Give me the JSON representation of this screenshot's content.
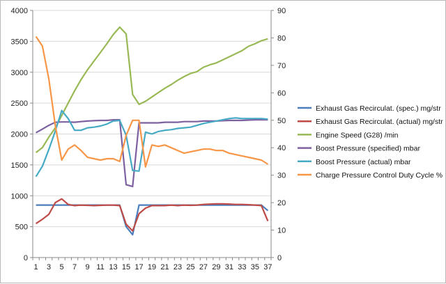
{
  "chart_data": {
    "type": "line",
    "title": "",
    "xlabel": "",
    "ylabel": "",
    "y2label": "",
    "grid": true,
    "legend_position": "right",
    "x_categories": [
      "1",
      "2",
      "3",
      "4",
      "5",
      "6",
      "7",
      "8",
      "9",
      "10",
      "11",
      "12",
      "13",
      "14",
      "15",
      "16",
      "17",
      "18",
      "19",
      "20",
      "21",
      "22",
      "23",
      "24",
      "25",
      "26",
      "27",
      "28",
      "29",
      "30",
      "31",
      "32",
      "33",
      "34",
      "35",
      "36",
      "37"
    ],
    "x_tick_labels": [
      "1",
      "3",
      "5",
      "7",
      "9",
      "11",
      "13",
      "15",
      "17",
      "19",
      "21",
      "23",
      "25",
      "27",
      "29",
      "31",
      "33",
      "35",
      "37"
    ],
    "left_axis": {
      "range": [
        0,
        4000
      ],
      "ticks": [
        0,
        500,
        1000,
        1500,
        2000,
        2500,
        3000,
        3500,
        4000
      ],
      "tick_labels": [
        "0",
        "500",
        "1000",
        "1500",
        "2000",
        "2500",
        "3000",
        "3500",
        "4000"
      ]
    },
    "right_axis": {
      "range": [
        0,
        90
      ],
      "ticks": [
        0,
        10,
        20,
        30,
        40,
        50,
        60,
        70,
        80,
        90
      ],
      "tick_labels": [
        "0",
        "10",
        "20",
        "30",
        "40",
        "50",
        "60",
        "70",
        "80",
        "90"
      ]
    },
    "series": [
      {
        "name": "Exhaust Gas Recirculat. (spec.)  mg/str",
        "axis": "left",
        "color": "#4a7ebb",
        "values": [
          850,
          850,
          850,
          850,
          850,
          850,
          850,
          850,
          850,
          850,
          850,
          850,
          850,
          850,
          500,
          370,
          850,
          850,
          850,
          850,
          850,
          850,
          850,
          850,
          850,
          850,
          850,
          850,
          850,
          850,
          850,
          850,
          850,
          850,
          850,
          850,
          760
        ]
      },
      {
        "name": "Exhaust Gas Recirculat. (actual)  mg/str",
        "axis": "left",
        "color": "#be4b48",
        "values": [
          550,
          620,
          700,
          890,
          950,
          860,
          840,
          850,
          845,
          840,
          845,
          850,
          850,
          840,
          540,
          430,
          710,
          800,
          840,
          840,
          840,
          850,
          840,
          850,
          845,
          850,
          860,
          865,
          870,
          870,
          865,
          860,
          860,
          855,
          850,
          840,
          590
        ]
      },
      {
        "name": "Engine Speed (G28)  /min",
        "axis": "left",
        "color": "#98b954",
        "values": [
          1700,
          1780,
          1950,
          2100,
          2300,
          2500,
          2700,
          2880,
          3040,
          3180,
          3320,
          3460,
          3610,
          3730,
          3620,
          2640,
          2480,
          2530,
          2600,
          2670,
          2740,
          2800,
          2870,
          2930,
          2980,
          3010,
          3080,
          3120,
          3150,
          3200,
          3250,
          3300,
          3350,
          3420,
          3460,
          3510,
          3540
        ]
      },
      {
        "name": "Boost Pressure (specified)  mbar",
        "axis": "left",
        "color": "#7d60a0",
        "values": [
          2020,
          2080,
          2140,
          2190,
          2195,
          2195,
          2190,
          2200,
          2210,
          2215,
          2220,
          2220,
          2230,
          2230,
          1180,
          1150,
          2180,
          2180,
          2180,
          2180,
          2190,
          2190,
          2190,
          2200,
          2200,
          2200,
          2210,
          2210,
          2210,
          2215,
          2220,
          2220,
          2220,
          2225,
          2230,
          2230,
          2230
        ]
      },
      {
        "name": "Boost Pressure (actual)  mbar",
        "axis": "left",
        "color": "#46aac5",
        "values": [
          1310,
          1480,
          1750,
          2050,
          2380,
          2250,
          2060,
          2060,
          2100,
          2110,
          2130,
          2160,
          2210,
          2220,
          1980,
          1410,
          1400,
          2030,
          2000,
          2040,
          2060,
          2070,
          2090,
          2100,
          2110,
          2140,
          2170,
          2190,
          2210,
          2230,
          2250,
          2260,
          2250,
          2250,
          2250,
          2250,
          2240
        ]
      },
      {
        "name": "Charge Pressure Control Duty Cycle  %",
        "axis": "right",
        "color": "#f79646",
        "values": [
          80.5,
          77,
          65,
          48,
          35.5,
          39.5,
          41,
          39,
          36.5,
          36,
          35.5,
          36,
          36,
          35,
          44.5,
          50,
          50,
          33,
          41,
          40.5,
          41,
          40,
          39,
          38,
          38.5,
          39,
          39.5,
          39.5,
          39,
          39,
          38,
          37.5,
          37,
          36.5,
          36,
          35.5,
          34
        ]
      }
    ]
  }
}
